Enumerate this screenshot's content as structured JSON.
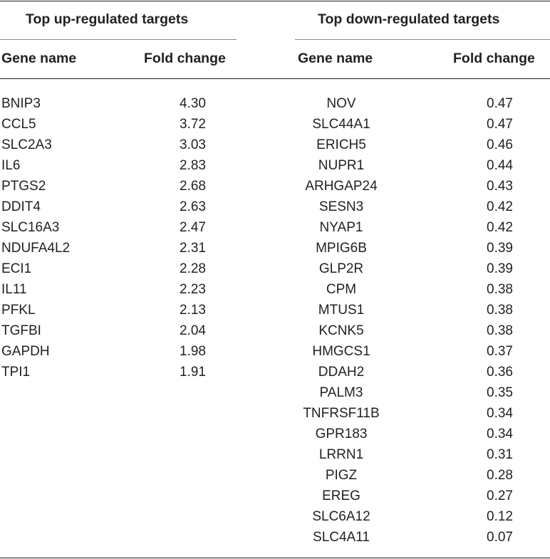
{
  "up": {
    "title": "Top up-regulated targets",
    "col_gene": "Gene name",
    "col_fold": "Fold change",
    "rows": [
      [
        "BNIP3",
        "4.30"
      ],
      [
        "CCL5",
        "3.72"
      ],
      [
        "SLC2A3",
        "3.03"
      ],
      [
        "IL6",
        "2.83"
      ],
      [
        "PTGS2",
        "2.68"
      ],
      [
        "DDIT4",
        "2.63"
      ],
      [
        "SLC16A3",
        "2.47"
      ],
      [
        "NDUFA4L2",
        "2.31"
      ],
      [
        "ECI1",
        "2.28"
      ],
      [
        "IL11",
        "2.23"
      ],
      [
        "PFKL",
        "2.13"
      ],
      [
        "TGFBI",
        "2.04"
      ],
      [
        "GAPDH",
        "1.98"
      ],
      [
        "TPI1",
        "1.91"
      ]
    ]
  },
  "down": {
    "title": "Top down-regulated targets",
    "col_gene": "Gene name",
    "col_fold": "Fold change",
    "rows": [
      [
        "NOV",
        "0.47"
      ],
      [
        "SLC44A1",
        "0.47"
      ],
      [
        "ERICH5",
        "0.46"
      ],
      [
        "NUPR1",
        "0.44"
      ],
      [
        "ARHGAP24",
        "0.43"
      ],
      [
        "SESN3",
        "0.42"
      ],
      [
        "NYAP1",
        "0.42"
      ],
      [
        "MPIG6B",
        "0.39"
      ],
      [
        "GLP2R",
        "0.39"
      ],
      [
        "CPM",
        "0.38"
      ],
      [
        "MTUS1",
        "0.38"
      ],
      [
        "KCNK5",
        "0.38"
      ],
      [
        "HMGCS1",
        "0.37"
      ],
      [
        "DDAH2",
        "0.36"
      ],
      [
        "PALM3",
        "0.35"
      ],
      [
        "TNFRSF11B",
        "0.34"
      ],
      [
        "GPR183",
        "0.34"
      ],
      [
        "LRRN1",
        "0.31"
      ],
      [
        "PIGZ",
        "0.28"
      ],
      [
        "EREG",
        "0.27"
      ],
      [
        "SLC6A12",
        "0.12"
      ],
      [
        "SLC4A11",
        "0.07"
      ]
    ]
  }
}
